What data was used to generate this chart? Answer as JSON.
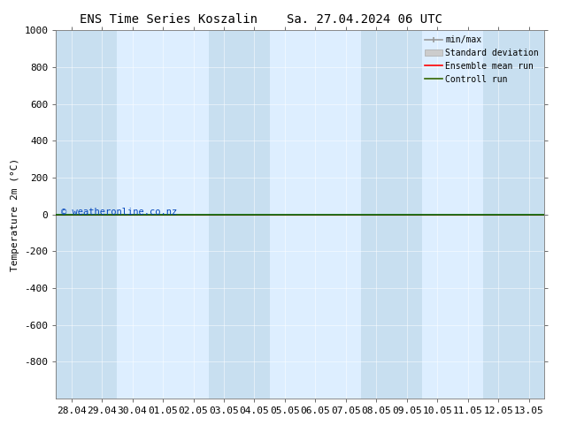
{
  "title_left": "ENS Time Series Koszalin",
  "title_right": "Sa. 27.04.2024 06 UTC",
  "ylabel": "Temperature 2m (°C)",
  "ylim_top": -1000,
  "ylim_bottom": 1000,
  "yticks": [
    -800,
    -600,
    -400,
    -200,
    0,
    200,
    400,
    600,
    800,
    1000
  ],
  "xtick_labels": [
    "28.04",
    "29.04",
    "30.04",
    "01.05",
    "02.05",
    "03.05",
    "04.05",
    "05.05",
    "06.05",
    "07.05",
    "08.05",
    "09.05",
    "10.05",
    "11.05",
    "12.05",
    "13.05"
  ],
  "xtick_positions": [
    0,
    1,
    2,
    3,
    4,
    5,
    6,
    7,
    8,
    9,
    10,
    11,
    12,
    13,
    14,
    15
  ],
  "shaded_columns": [
    0,
    1,
    5,
    6,
    10,
    11,
    14,
    15
  ],
  "shade_color": "#c8dff0",
  "plot_bg_color": "#ddeeff",
  "line_color_green": "#006600",
  "line_color_red": "#ff0000",
  "watermark": "© weatheronline.co.nz",
  "watermark_color": "#0044bb",
  "legend_items": [
    "min/max",
    "Standard deviation",
    "Ensemble mean run",
    "Controll run"
  ],
  "legend_line_colors": [
    "#aaaaaa",
    "#cccccc",
    "#ff0000",
    "#336600"
  ],
  "title_fontsize": 10,
  "axis_label_fontsize": 8,
  "tick_fontsize": 8,
  "legend_fontsize": 7
}
